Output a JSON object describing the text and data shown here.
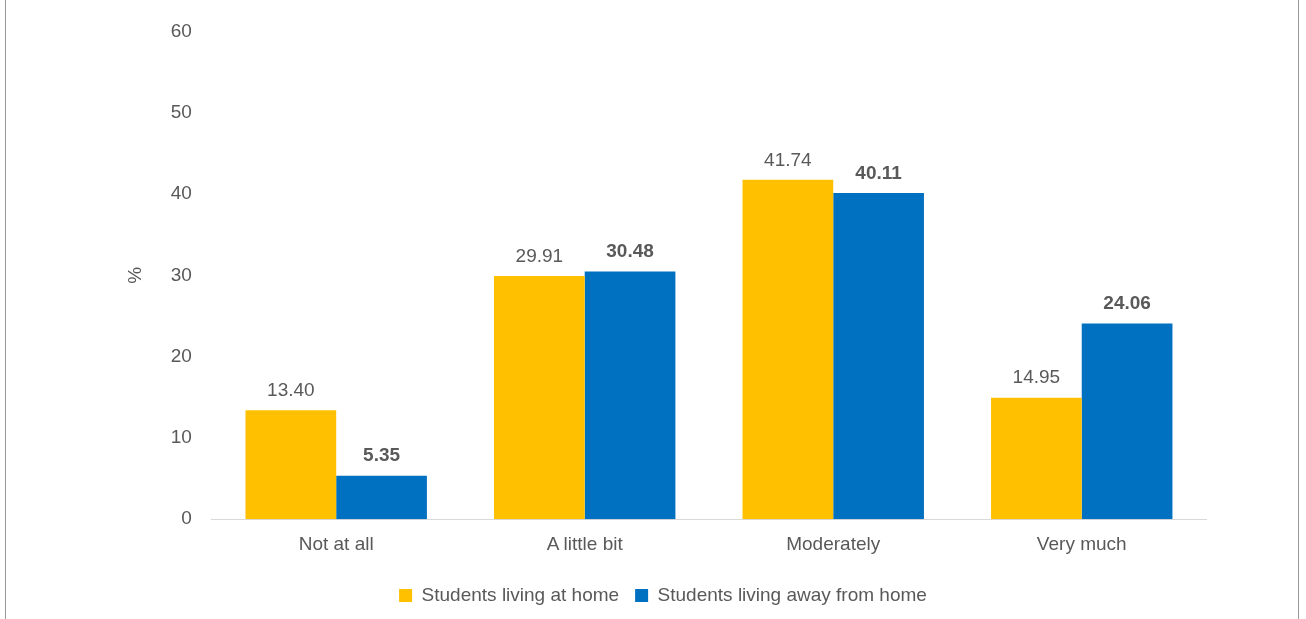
{
  "chart_data": {
    "type": "bar",
    "ylabel": "%",
    "categories": [
      "Not at all",
      "A little bit",
      "Moderately",
      "Very much"
    ],
    "series": [
      {
        "name": "Students living at home",
        "color": "#ffc000",
        "values": [
          13.4,
          29.91,
          41.74,
          14.95
        ],
        "value_labels": [
          "13.40",
          "29.91",
          "41.74",
          "14.95"
        ]
      },
      {
        "name": "Students living away from home",
        "color": "#0070c0",
        "values": [
          5.35,
          30.48,
          40.11,
          24.06
        ],
        "value_labels": [
          "5.35",
          "30.48",
          "40.11",
          "24.06"
        ]
      }
    ],
    "ylim": [
      0,
      60
    ],
    "yticks": [
      0,
      10,
      20,
      30,
      40,
      50,
      60
    ],
    "grid": false,
    "legend": "bottom"
  }
}
